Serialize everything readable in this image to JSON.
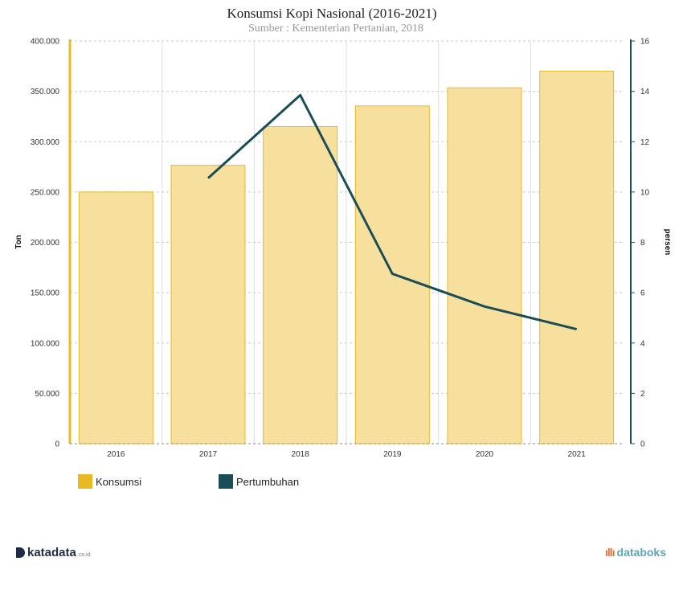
{
  "chart_data": {
    "type": "bar",
    "title": "Konsumsi Kopi Nasional (2016-2021)",
    "subtitle": "Sumber : Kementerian Pertanian, 2018",
    "categories": [
      "2016",
      "2017",
      "2018",
      "2019",
      "2020",
      "2021"
    ],
    "series": [
      {
        "name": "Konsumsi",
        "type": "bar",
        "axis": "left",
        "color": "#f7e09e",
        "border_color": "#e8b923",
        "values": [
          250000,
          276500,
          315000,
          335500,
          353500,
          370000
        ]
      },
      {
        "name": "Pertumbuhan",
        "type": "line",
        "axis": "right",
        "color": "#1b4d57",
        "values": [
          null,
          10.55,
          13.85,
          6.75,
          5.45,
          4.55
        ]
      }
    ],
    "ylabel": "Ton",
    "y2label": "persen",
    "ylim": [
      0,
      400000
    ],
    "y2lim": [
      0,
      16
    ],
    "yticks": [
      "0",
      "50.000",
      "100.000",
      "150.000",
      "200.000",
      "250.000",
      "300.000",
      "350.000",
      "400.000"
    ],
    "y2ticks": [
      "0",
      "2",
      "4",
      "6",
      "8",
      "10",
      "12",
      "14",
      "16"
    ],
    "grid": true,
    "legend_position": "bottom-left",
    "legend": [
      {
        "label": "Konsumsi",
        "color": "#e8b923"
      },
      {
        "label": "Pertumbuhan",
        "color": "#1b4d57"
      }
    ]
  },
  "branding": {
    "left_name": "katadata",
    "left_suffix": ".co.id",
    "right_name": "databoks"
  }
}
